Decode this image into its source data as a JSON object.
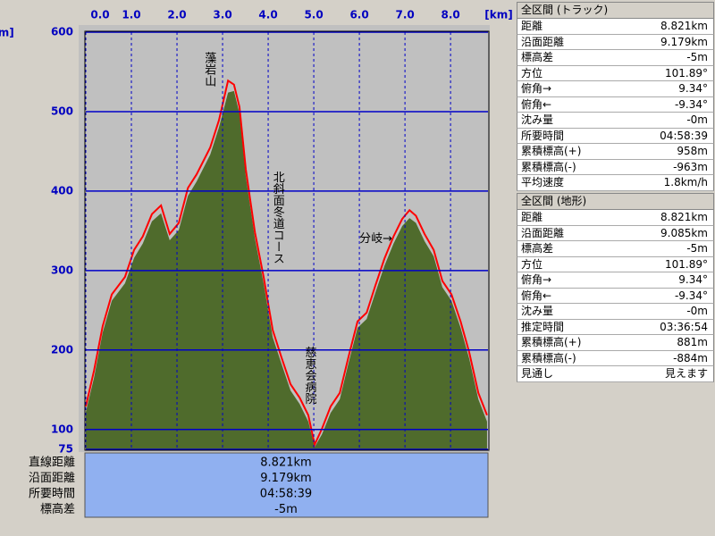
{
  "chart_data": {
    "type": "area",
    "xlabel": "[km]",
    "ylabel": "[m]",
    "xlim": [
      0,
      8.821
    ],
    "ylim": [
      75,
      600
    ],
    "xticks": [
      {
        "value": 0,
        "label": "0.0"
      },
      {
        "value": 1,
        "label": "1.0"
      },
      {
        "value": 2,
        "label": "2.0"
      },
      {
        "value": 3,
        "label": "3.0"
      },
      {
        "value": 4,
        "label": "4.0"
      },
      {
        "value": 5,
        "label": "5.0"
      },
      {
        "value": 6,
        "label": "6.0"
      },
      {
        "value": 7,
        "label": "7.0"
      },
      {
        "value": 8,
        "label": "8.0"
      }
    ],
    "yticks": [
      75,
      100,
      200,
      300,
      400,
      500,
      600
    ],
    "grid": true,
    "x": [
      0,
      0.18,
      0.37,
      0.57,
      0.86,
      1.06,
      1.25,
      1.45,
      1.65,
      1.84,
      2.04,
      2.24,
      2.43,
      2.73,
      2.92,
      3.12,
      3.25,
      3.37,
      3.51,
      3.71,
      3.9,
      4.1,
      4.29,
      4.49,
      4.69,
      4.88,
      5.02,
      5.18,
      5.37,
      5.57,
      5.76,
      5.96,
      6.16,
      6.35,
      6.55,
      6.75,
      6.94,
      7.1,
      7.24,
      7.43,
      7.63,
      7.82,
      8.02,
      8.22,
      8.41,
      8.61,
      8.8
    ],
    "series": [
      {
        "color": "#4f6b2c",
        "values": [
          122,
          165,
          222,
          262,
          284,
          316,
          334,
          362,
          372,
          338,
          351,
          394,
          412,
          446,
          480,
          524,
          526,
          498,
          418,
          340,
          284,
          216,
          183,
          149,
          132,
          110,
          78,
          94,
          121,
          138,
          183,
          228,
          239,
          272,
          306,
          334,
          356,
          366,
          360,
          337,
          318,
          279,
          262,
          228,
          189,
          138,
          110
        ]
      },
      {
        "color": "#ff0000",
        "values": [
          129,
          174,
          230,
          270,
          292,
          326,
          343,
          371,
          382,
          346,
          360,
          404,
          421,
          455,
          489,
          539,
          534,
          506,
          427,
          348,
          292,
          225,
          191,
          157,
          140,
          118,
          81,
          101,
          129,
          146,
          191,
          236,
          247,
          281,
          315,
          343,
          365,
          376,
          369,
          346,
          326,
          287,
          270,
          236,
          197,
          146,
          118
        ]
      }
    ],
    "annotations": [
      {
        "text": "藻岩山",
        "x": 2.7,
        "y": 575
      },
      {
        "text": "北斜面冬道コース",
        "x": 4.2,
        "y": 425
      },
      {
        "text": "慈恵会病院",
        "x": 4.9,
        "y": 205
      },
      {
        "text": "分岐→",
        "x": 6.0,
        "y": 340
      }
    ]
  },
  "summary": {
    "rows": [
      [
        "直線距離",
        "8.821km"
      ],
      [
        "沿面距離",
        "9.179km"
      ],
      [
        "所要時間",
        "04:58:39"
      ],
      [
        "標高差",
        "-5m"
      ]
    ]
  },
  "panels": [
    {
      "title": "全区間 (トラック)",
      "rows": [
        [
          "距離",
          "8.821km"
        ],
        [
          "沿面距離",
          "9.179km"
        ],
        [
          "標高差",
          "-5m"
        ],
        [
          "方位",
          "101.89°"
        ],
        [
          "俯角→",
          "9.34°"
        ],
        [
          "俯角←",
          "-9.34°"
        ],
        [
          "沈み量",
          "-0m"
        ],
        [
          "所要時間",
          "04:58:39"
        ],
        [
          "累積標高(+)",
          "958m"
        ],
        [
          "累積標高(-)",
          "-963m"
        ],
        [
          "平均速度",
          "1.8km/h"
        ]
      ]
    },
    {
      "title": "全区間 (地形)",
      "rows": [
        [
          "距離",
          "8.821km"
        ],
        [
          "沿面距離",
          "9.085km"
        ],
        [
          "標高差",
          "-5m"
        ],
        [
          "方位",
          "101.89°"
        ],
        [
          "俯角→",
          "9.34°"
        ],
        [
          "俯角←",
          "-9.34°"
        ],
        [
          "沈み量",
          "-0m"
        ],
        [
          "推定時間",
          "03:36:54"
        ],
        [
          "累積標高(+)",
          "881m"
        ],
        [
          "累積標高(-)",
          "-884m"
        ],
        [
          "見通し",
          "見えます"
        ]
      ]
    }
  ]
}
